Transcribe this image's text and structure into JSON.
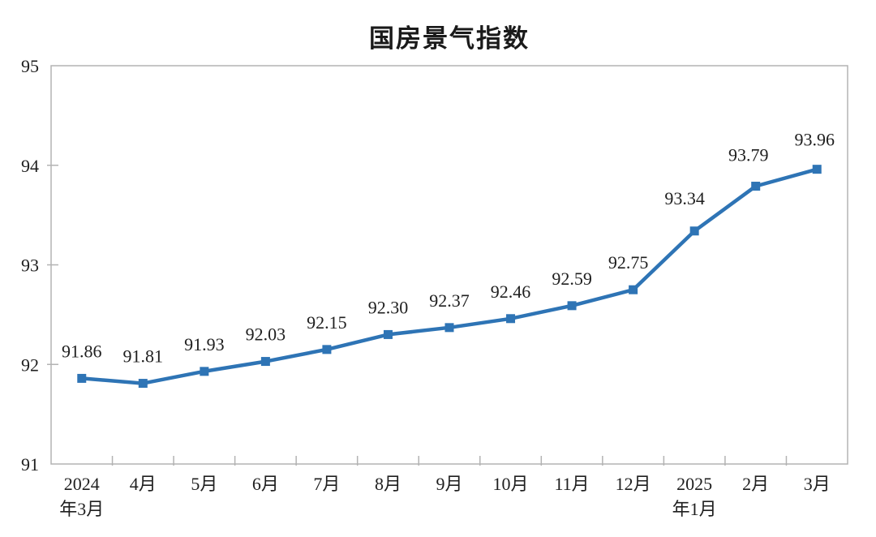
{
  "chart_data": {
    "type": "line",
    "title": "国房景气指数",
    "categories": [
      "2024年3月",
      "4月",
      "5月",
      "6月",
      "7月",
      "8月",
      "9月",
      "10月",
      "11月",
      "12月",
      "2025年1月",
      "2月",
      "3月"
    ],
    "category_label_lines": [
      [
        "2024",
        "年3月"
      ],
      [
        "4月"
      ],
      [
        "5月"
      ],
      [
        "6月"
      ],
      [
        "7月"
      ],
      [
        "8月"
      ],
      [
        "9月"
      ],
      [
        "10月"
      ],
      [
        "11月"
      ],
      [
        "12月"
      ],
      [
        "2025",
        "年1月"
      ],
      [
        "2月"
      ],
      [
        "3月"
      ]
    ],
    "values": [
      91.86,
      91.81,
      91.93,
      92.03,
      92.15,
      92.3,
      92.37,
      92.46,
      92.59,
      92.75,
      93.34,
      93.79,
      93.96
    ],
    "data_labels": [
      "91.86",
      "91.81",
      "91.93",
      "92.03",
      "92.15",
      "92.30",
      "92.37",
      "92.46",
      "92.59",
      "92.75",
      "93.34",
      "93.79",
      "93.96"
    ],
    "ylim": [
      91,
      95
    ],
    "y_ticks": [
      "91",
      "92",
      "93",
      "94",
      "95"
    ],
    "xlabel": "",
    "ylabel": "",
    "grid": false,
    "legend": "none",
    "marker": "square",
    "line_color": "#2E74B5",
    "text_color": "#1f1f1f",
    "axis_color": "#b3b3b3",
    "background_color": "#ffffff"
  }
}
